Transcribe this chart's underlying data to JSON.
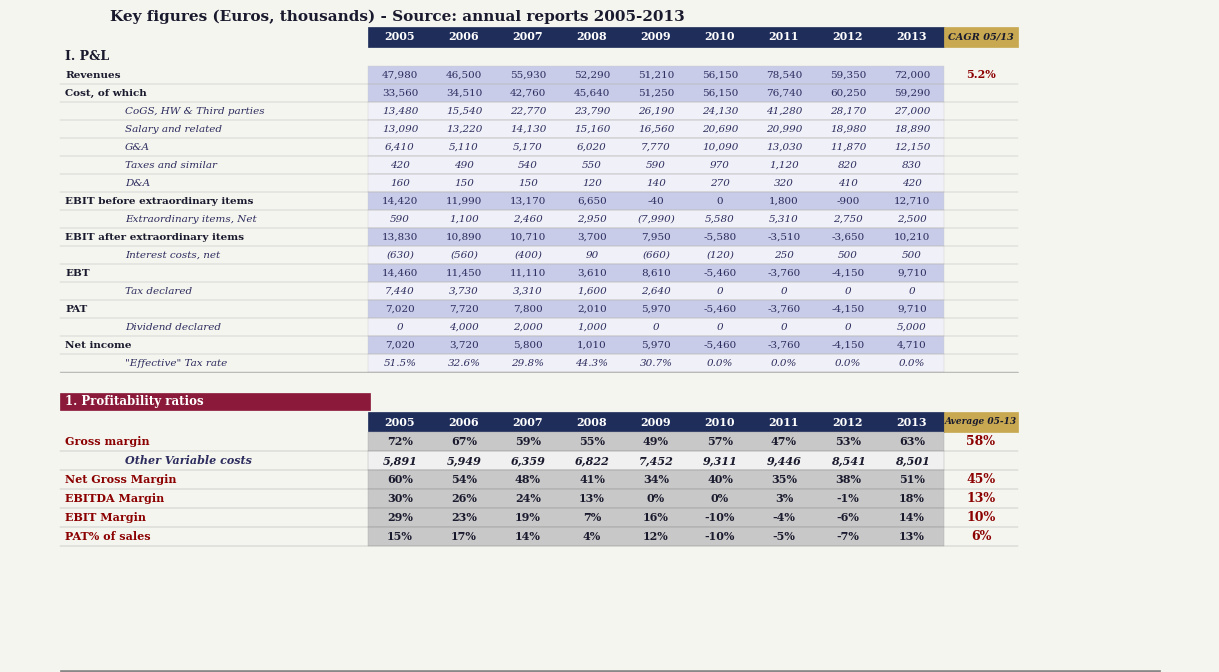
{
  "title": "Key figures (Euros, thousands) - Source: annual reports 2005-2013",
  "years": [
    "2005",
    "2006",
    "2007",
    "2008",
    "2009",
    "2010",
    "2011",
    "2012",
    "2013"
  ],
  "cagr_header": "CAGR 05/13",
  "avg_header": "Average 05-13",
  "header_bg": "#1f2d5a",
  "header_text": "#ffffff",
  "cagr_bg": "#c8a951",
  "avg_bg": "#c8a951",
  "section1_header": "I. P&L",
  "section2_header": "1. Profitability ratios",
  "section2_bg": "#8b1a3a",
  "row_highlight_bg": "#c8cce8",
  "row_normal_bg": "#ffffff",
  "row_sub_bg": "#ffffff",
  "data_text": "#1a1a2e",
  "italic_text": "#2c2c5e",
  "red_text": "#8b0000",
  "pnl_rows": [
    {
      "label": "Revenues",
      "indent": 0,
      "highlight": true,
      "values": [
        "47,980",
        "46,500",
        "55,930",
        "52,290",
        "51,210",
        "56,150",
        "78,540",
        "59,350",
        "72,000"
      ],
      "cagr": "5.2%"
    },
    {
      "label": "Cost, of which",
      "indent": 0,
      "highlight": true,
      "values": [
        "33,560",
        "34,510",
        "42,760",
        "45,640",
        "51,250",
        "56,150",
        "76,740",
        "60,250",
        "59,290"
      ],
      "cagr": ""
    },
    {
      "label": "CoGS, HW & Third parties",
      "indent": 2,
      "highlight": false,
      "italic": true,
      "values": [
        "13,480",
        "15,540",
        "22,770",
        "23,790",
        "26,190",
        "24,130",
        "41,280",
        "28,170",
        "27,000"
      ],
      "cagr": ""
    },
    {
      "label": "Salary and related",
      "indent": 2,
      "highlight": false,
      "italic": true,
      "values": [
        "13,090",
        "13,220",
        "14,130",
        "15,160",
        "16,560",
        "20,690",
        "20,990",
        "18,980",
        "18,890"
      ],
      "cagr": ""
    },
    {
      "label": "G&A",
      "indent": 2,
      "highlight": false,
      "italic": true,
      "values": [
        "6,410",
        "5,110",
        "5,170",
        "6,020",
        "7,770",
        "10,090",
        "13,030",
        "11,870",
        "12,150"
      ],
      "cagr": ""
    },
    {
      "label": "Taxes and similar",
      "indent": 2,
      "highlight": false,
      "italic": true,
      "values": [
        "420",
        "490",
        "540",
        "550",
        "590",
        "970",
        "1,120",
        "820",
        "830"
      ],
      "cagr": ""
    },
    {
      "label": "D&A",
      "indent": 2,
      "highlight": false,
      "italic": true,
      "values": [
        "160",
        "150",
        "150",
        "120",
        "140",
        "270",
        "320",
        "410",
        "420"
      ],
      "cagr": ""
    },
    {
      "label": "EBIT before extraordinary items",
      "indent": 0,
      "highlight": true,
      "values": [
        "14,420",
        "11,990",
        "13,170",
        "6,650",
        "-40",
        "0",
        "1,800",
        "-900",
        "12,710"
      ],
      "cagr": ""
    },
    {
      "label": "Extraordinary items, Net",
      "indent": 2,
      "highlight": false,
      "italic": true,
      "values": [
        "590",
        "1,100",
        "2,460",
        "2,950",
        "(7,990)",
        "5,580",
        "5,310",
        "2,750",
        "2,500"
      ],
      "cagr": ""
    },
    {
      "label": "EBIT after extraordinary items",
      "indent": 0,
      "highlight": true,
      "values": [
        "13,830",
        "10,890",
        "10,710",
        "3,700",
        "7,950",
        "-5,580",
        "-3,510",
        "-3,650",
        "10,210"
      ],
      "cagr": ""
    },
    {
      "label": "Interest costs, net",
      "indent": 2,
      "highlight": false,
      "italic": true,
      "values": [
        "(630)",
        "(560)",
        "(400)",
        "90",
        "(660)",
        "(120)",
        "250",
        "500",
        "500"
      ],
      "cagr": ""
    },
    {
      "label": "EBT",
      "indent": 0,
      "highlight": true,
      "values": [
        "14,460",
        "11,450",
        "11,110",
        "3,610",
        "8,610",
        "-5,460",
        "-3,760",
        "-4,150",
        "9,710"
      ],
      "cagr": ""
    },
    {
      "label": "Tax declared",
      "indent": 2,
      "highlight": false,
      "italic": true,
      "values": [
        "7,440",
        "3,730",
        "3,310",
        "1,600",
        "2,640",
        "0",
        "0",
        "0",
        "0"
      ],
      "cagr": ""
    },
    {
      "label": "PAT",
      "indent": 0,
      "highlight": true,
      "values": [
        "7,020",
        "7,720",
        "7,800",
        "2,010",
        "5,970",
        "-5,460",
        "-3,760",
        "-4,150",
        "9,710"
      ],
      "cagr": ""
    },
    {
      "label": "Dividend declared",
      "indent": 2,
      "highlight": false,
      "italic": true,
      "values": [
        "0",
        "4,000",
        "2,000",
        "1,000",
        "0",
        "0",
        "0",
        "0",
        "5,000"
      ],
      "cagr": ""
    },
    {
      "label": "Net income",
      "indent": 0,
      "highlight": true,
      "values": [
        "7,020",
        "3,720",
        "5,800",
        "1,010",
        "5,970",
        "-5,460",
        "-3,760",
        "-4,150",
        "4,710"
      ],
      "cagr": ""
    },
    {
      "label": "\"Effective\" Tax rate",
      "indent": 2,
      "highlight": false,
      "italic": true,
      "values": [
        "51.5%",
        "32.6%",
        "29.8%",
        "44.3%",
        "30.7%",
        "0.0%",
        "0.0%",
        "0.0%",
        "0.0%"
      ],
      "cagr": ""
    }
  ],
  "prof_rows": [
    {
      "label": "Gross margin",
      "indent": 0,
      "highlight": true,
      "values": [
        "72%",
        "67%",
        "59%",
        "55%",
        "49%",
        "57%",
        "47%",
        "53%",
        "63%"
      ],
      "avg": "58%"
    },
    {
      "label": "Other Variable costs",
      "indent": 2,
      "highlight": false,
      "italic": true,
      "values": [
        "5,891",
        "5,949",
        "6,359",
        "6,822",
        "7,452",
        "9,311",
        "9,446",
        "8,541",
        "8,501"
      ],
      "avg": ""
    },
    {
      "label": "Net Gross Margin",
      "indent": 0,
      "highlight": true,
      "values": [
        "60%",
        "54%",
        "48%",
        "41%",
        "34%",
        "40%",
        "35%",
        "38%",
        "51%"
      ],
      "avg": "45%"
    },
    {
      "label": "EBITDA Margin",
      "indent": 0,
      "highlight": true,
      "values": [
        "30%",
        "26%",
        "24%",
        "13%",
        "0%",
        "0%",
        "3%",
        "-1%",
        "18%"
      ],
      "avg": "13%"
    },
    {
      "label": "EBIT Margin",
      "indent": 0,
      "highlight": true,
      "values": [
        "29%",
        "23%",
        "19%",
        "7%",
        "16%",
        "-10%",
        "-4%",
        "-6%",
        "14%"
      ],
      "avg": "10%"
    },
    {
      "label": "PAT% of sales",
      "indent": 0,
      "highlight": true,
      "values": [
        "15%",
        "17%",
        "14%",
        "4%",
        "12%",
        "-10%",
        "-5%",
        "-7%",
        "13%"
      ],
      "avg": "6%"
    }
  ]
}
